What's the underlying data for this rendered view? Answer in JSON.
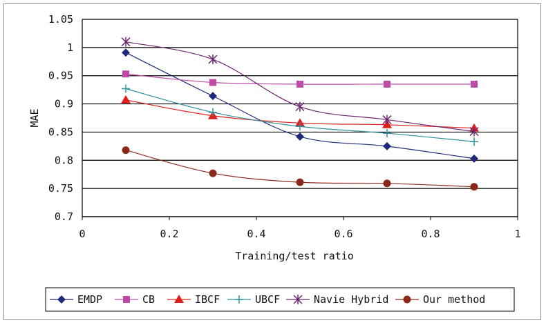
{
  "chart_data": {
    "type": "line",
    "xlabel": "Training/test ratio",
    "ylabel": "MAE",
    "xlim": [
      0,
      1
    ],
    "ylim": [
      0.7,
      1.05
    ],
    "x_ticks": [
      "0",
      "0.2",
      "0.4",
      "0.6",
      "0.8",
      "1"
    ],
    "y_ticks": [
      "0.7",
      "0.75",
      "0.8",
      "0.85",
      "0.9",
      "0.95",
      "1",
      "1.05"
    ],
    "grid": "horizontal",
    "legend_position": "bottom",
    "x": [
      0.1,
      0.3,
      0.5,
      0.7,
      0.9
    ],
    "series": [
      {
        "name": "EMDP",
        "values": [
          0.991,
          0.914,
          0.842,
          0.825,
          0.803
        ],
        "color": "#1f2a7a",
        "marker": "diamond"
      },
      {
        "name": "CB",
        "values": [
          0.953,
          0.938,
          0.935,
          0.935,
          0.935
        ],
        "color": "#c04aa8",
        "marker": "square"
      },
      {
        "name": "IBCF",
        "values": [
          0.907,
          0.879,
          0.866,
          0.863,
          0.857
        ],
        "color": "#e0201c",
        "marker": "triangle"
      },
      {
        "name": "UBCF",
        "values": [
          0.927,
          0.885,
          0.86,
          0.848,
          0.833
        ],
        "color": "#2f8f9f",
        "marker": "plus"
      },
      {
        "name": "Navie Hybrid",
        "values": [
          1.01,
          0.979,
          0.895,
          0.872,
          0.851
        ],
        "color": "#6b2570",
        "marker": "asterisk"
      },
      {
        "name": "Our method",
        "values": [
          0.818,
          0.777,
          0.761,
          0.759,
          0.753
        ],
        "color": "#8b2a1c",
        "marker": "circle"
      }
    ]
  }
}
